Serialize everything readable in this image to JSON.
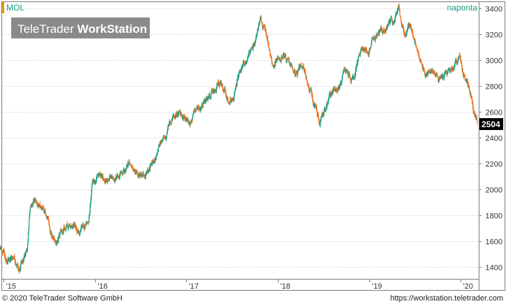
{
  "header": {
    "symbol": "MOL",
    "period": "naponta"
  },
  "brand": {
    "light": "TeleTrader ",
    "bold": "WorkStation"
  },
  "footer": {
    "copyright": "© 2020 TeleTrader Software GmbH",
    "url": "https://workstation.teletrader.com"
  },
  "colors": {
    "up": "#1a9e85",
    "down": "#f0701e",
    "accent_bar": "#f39200",
    "grid": "#c8c8c8",
    "brand_bg": "#8a8a8a",
    "last_bg": "#000000"
  },
  "chart_data": {
    "type": "candlestick",
    "series_name": "MOL",
    "x_ticks": [
      "'15",
      "'16",
      "'17",
      "'18",
      "'19",
      "'20"
    ],
    "x_range": [
      2015.0,
      2020.18
    ],
    "y_ticks": [
      1400,
      1600,
      1800,
      2000,
      2200,
      2400,
      2600,
      2800,
      3000,
      3200,
      3400
    ],
    "y_range": [
      1310,
      3450
    ],
    "grid": true,
    "last_value": "2504",
    "trend_points": [
      [
        2014.95,
        1560
      ],
      [
        2015.03,
        1470
      ],
      [
        2015.1,
        1460
      ],
      [
        2015.16,
        1380
      ],
      [
        2015.22,
        1480
      ],
      [
        2015.26,
        1520
      ],
      [
        2015.29,
        1880
      ],
      [
        2015.33,
        1920
      ],
      [
        2015.38,
        1880
      ],
      [
        2015.44,
        1850
      ],
      [
        2015.49,
        1760
      ],
      [
        2015.54,
        1620
      ],
      [
        2015.58,
        1560
      ],
      [
        2015.63,
        1680
      ],
      [
        2015.7,
        1720
      ],
      [
        2015.77,
        1680
      ],
      [
        2015.83,
        1640
      ],
      [
        2015.88,
        1700
      ],
      [
        2015.93,
        1760
      ],
      [
        2015.97,
        2060
      ],
      [
        2016.04,
        2080
      ],
      [
        2016.1,
        2060
      ],
      [
        2016.17,
        2100
      ],
      [
        2016.24,
        2110
      ],
      [
        2016.3,
        2150
      ],
      [
        2016.37,
        2200
      ],
      [
        2016.44,
        2160
      ],
      [
        2016.5,
        2120
      ],
      [
        2016.57,
        2140
      ],
      [
        2016.62,
        2230
      ],
      [
        2016.67,
        2270
      ],
      [
        2016.72,
        2360
      ],
      [
        2016.77,
        2420
      ],
      [
        2016.81,
        2530
      ],
      [
        2016.87,
        2570
      ],
      [
        2016.92,
        2600
      ],
      [
        2016.98,
        2560
      ],
      [
        2017.05,
        2520
      ],
      [
        2017.1,
        2580
      ],
      [
        2017.16,
        2620
      ],
      [
        2017.23,
        2680
      ],
      [
        2017.3,
        2750
      ],
      [
        2017.37,
        2830
      ],
      [
        2017.42,
        2780
      ],
      [
        2017.47,
        2700
      ],
      [
        2017.52,
        2760
      ],
      [
        2017.58,
        2900
      ],
      [
        2017.64,
        2960
      ],
      [
        2017.7,
        3050
      ],
      [
        2017.76,
        3160
      ],
      [
        2017.81,
        3300
      ],
      [
        2017.86,
        3200
      ],
      [
        2017.9,
        3100
      ],
      [
        2017.95,
        2920
      ],
      [
        2018.0,
        3000
      ],
      [
        2018.06,
        3060
      ],
      [
        2018.12,
        2980
      ],
      [
        2018.19,
        2880
      ],
      [
        2018.25,
        2960
      ],
      [
        2018.3,
        2900
      ],
      [
        2018.36,
        2760
      ],
      [
        2018.41,
        2640
      ],
      [
        2018.46,
        2520
      ],
      [
        2018.5,
        2600
      ],
      [
        2018.55,
        2700
      ],
      [
        2018.61,
        2760
      ],
      [
        2018.67,
        2800
      ],
      [
        2018.73,
        2920
      ],
      [
        2018.8,
        2860
      ],
      [
        2018.86,
        2960
      ],
      [
        2018.92,
        3080
      ],
      [
        2018.98,
        3060
      ],
      [
        2019.04,
        3150
      ],
      [
        2019.11,
        3200
      ],
      [
        2019.17,
        3260
      ],
      [
        2019.22,
        3300
      ],
      [
        2019.27,
        3290
      ],
      [
        2019.32,
        3380
      ],
      [
        2019.35,
        3260
      ],
      [
        2019.39,
        3180
      ],
      [
        2019.44,
        3280
      ],
      [
        2019.5,
        3120
      ],
      [
        2019.56,
        2980
      ],
      [
        2019.62,
        2920
      ],
      [
        2019.69,
        2960
      ],
      [
        2019.75,
        2840
      ],
      [
        2019.81,
        2880
      ],
      [
        2019.88,
        2900
      ],
      [
        2019.93,
        2960
      ],
      [
        2019.98,
        3010
      ],
      [
        2020.03,
        2900
      ],
      [
        2020.08,
        2800
      ],
      [
        2020.12,
        2700
      ],
      [
        2020.15,
        2560
      ],
      [
        2020.18,
        2504
      ]
    ]
  }
}
